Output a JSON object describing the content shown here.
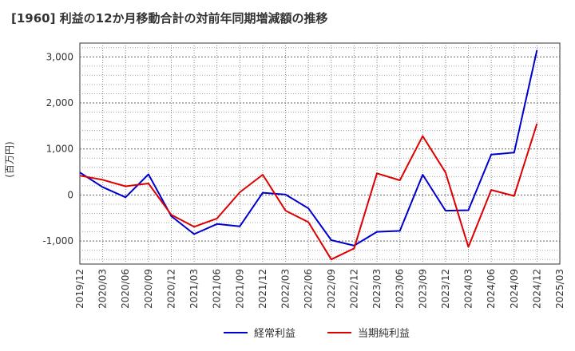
{
  "chart_data": {
    "type": "line",
    "title": "[1960]  利益の12か月移動合計の対前年同期増減額の推移",
    "ylabel": "(百万円)",
    "xlabel": "",
    "ylim": [
      -1500,
      3300
    ],
    "yticks": [
      -1000,
      0,
      1000,
      2000,
      3000
    ],
    "ytick_labels": [
      "-1,000",
      "0",
      "1,000",
      "2,000",
      "3,000"
    ],
    "categories": [
      "2019/12",
      "2020/03",
      "2020/06",
      "2020/09",
      "2020/12",
      "2021/03",
      "2021/06",
      "2021/09",
      "2021/12",
      "2022/03",
      "2022/06",
      "2022/09",
      "2022/12",
      "2023/03",
      "2023/06",
      "2023/09",
      "2023/12",
      "2024/03",
      "2024/06",
      "2024/09",
      "2024/12",
      "2025/03"
    ],
    "grid": true,
    "legend_position": "bottom",
    "series": [
      {
        "name": "経常利益",
        "color": "#0000cc",
        "values": [
          490,
          170,
          -50,
          450,
          -460,
          -850,
          -630,
          -680,
          50,
          10,
          -290,
          -980,
          -1100,
          -800,
          -780,
          440,
          -340,
          -330,
          880,
          920,
          3150,
          null
        ]
      },
      {
        "name": "当期純利益",
        "color": "#dd0000",
        "values": [
          420,
          330,
          190,
          250,
          -430,
          -690,
          -510,
          60,
          440,
          -340,
          -590,
          -1400,
          -1160,
          470,
          320,
          1280,
          490,
          -1130,
          110,
          -20,
          1550,
          null
        ]
      }
    ]
  }
}
